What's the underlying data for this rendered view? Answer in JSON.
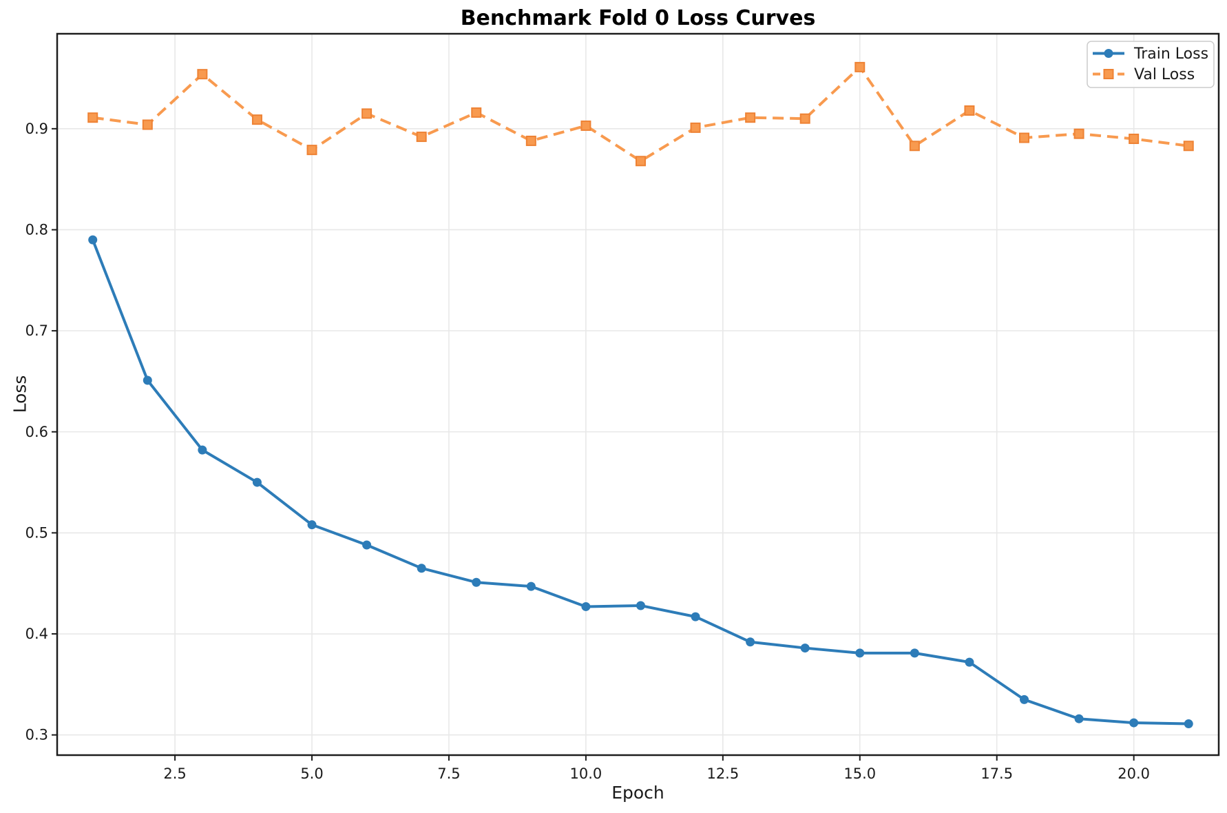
{
  "chart_data": {
    "type": "line",
    "title": "Benchmark Fold 0 Loss Curves",
    "xlabel": "Epoch",
    "ylabel": "Loss",
    "x": [
      1,
      2,
      3,
      4,
      5,
      6,
      7,
      8,
      9,
      10,
      11,
      12,
      13,
      14,
      15,
      16,
      17,
      18,
      19,
      20,
      21
    ],
    "series": [
      {
        "name": "Train Loss",
        "color": "#2d7cb8",
        "line_style": "solid",
        "marker": "circle",
        "values": [
          0.79,
          0.651,
          0.582,
          0.55,
          0.508,
          0.488,
          0.465,
          0.451,
          0.447,
          0.427,
          0.428,
          0.417,
          0.392,
          0.386,
          0.381,
          0.381,
          0.372,
          0.335,
          0.316,
          0.312,
          0.311
        ]
      },
      {
        "name": "Val Loss",
        "color": "#f89a4f",
        "marker_edge_color": "#ee8234",
        "line_style": "dashed",
        "marker": "square",
        "values": [
          0.911,
          0.904,
          0.954,
          0.909,
          0.879,
          0.915,
          0.892,
          0.916,
          0.888,
          0.903,
          0.868,
          0.901,
          0.911,
          0.91,
          0.961,
          0.883,
          0.918,
          0.891,
          0.895,
          0.89,
          0.883
        ]
      }
    ],
    "xlim": [
      0.35,
      21.55
    ],
    "ylim": [
      0.28,
      0.994
    ],
    "x_ticks": [
      2.5,
      5.0,
      7.5,
      10.0,
      12.5,
      15.0,
      17.5,
      20.0
    ],
    "x_tick_labels": [
      "2.5",
      "5.0",
      "7.5",
      "10.0",
      "12.5",
      "15.0",
      "17.5",
      "20.0"
    ],
    "y_ticks": [
      0.3,
      0.4,
      0.5,
      0.6,
      0.7,
      0.8,
      0.9
    ],
    "y_tick_labels": [
      "0.3",
      "0.4",
      "0.5",
      "0.6",
      "0.7",
      "0.8",
      "0.9"
    ],
    "grid": true,
    "legend": {
      "position": "upper right",
      "items": [
        "Train Loss",
        "Val Loss"
      ]
    },
    "colors": {
      "grid": "#e8e8e8",
      "spine": "#1d1d1d",
      "tick": "#1d1d1d",
      "text": "#1a1a1a",
      "legend_border": "#cccccc",
      "legend_bg": "#ffffff"
    }
  }
}
